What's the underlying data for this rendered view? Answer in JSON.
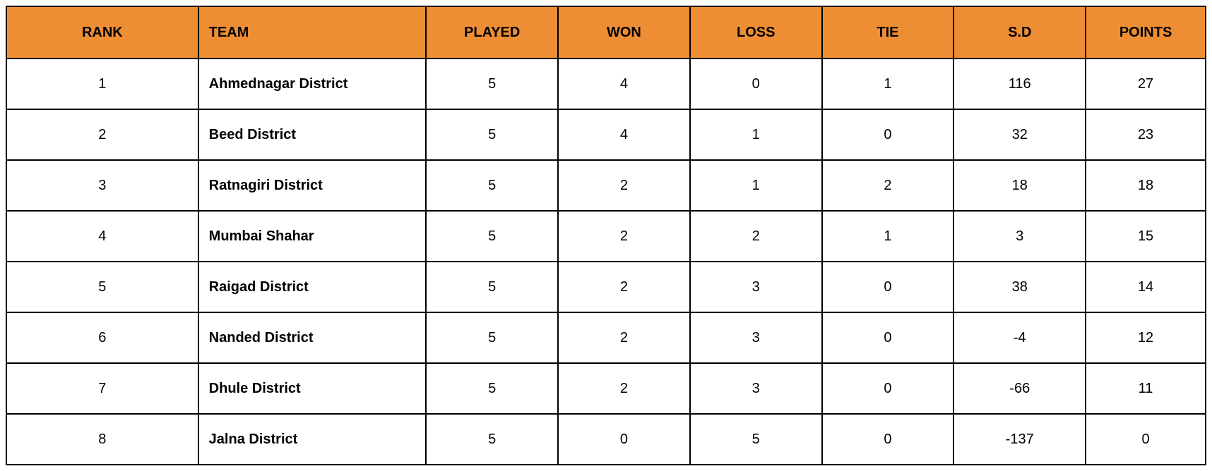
{
  "table": {
    "header_bg": "#ee8e34",
    "border_color": "#000000",
    "row_bg": "#ffffff",
    "font_family": "Arial",
    "header_fontsize": 20,
    "cell_fontsize": 20,
    "columns": {
      "rank": {
        "label": "RANK",
        "align": "center",
        "width_pct": 16
      },
      "team": {
        "label": "TEAM",
        "align": "left",
        "width_pct": 19
      },
      "played": {
        "label": "PLAYED",
        "align": "center",
        "width_pct": 11
      },
      "won": {
        "label": "WON",
        "align": "center",
        "width_pct": 11
      },
      "loss": {
        "label": "LOSS",
        "align": "center",
        "width_pct": 11
      },
      "tie": {
        "label": "TIE",
        "align": "center",
        "width_pct": 11
      },
      "sd": {
        "label": "S.D",
        "align": "center",
        "width_pct": 11
      },
      "points": {
        "label": "POINTS",
        "align": "center",
        "width_pct": 10
      }
    },
    "rows": [
      {
        "rank": "1",
        "team": "Ahmednagar District",
        "played": "5",
        "won": "4",
        "loss": "0",
        "tie": "1",
        "sd": "116",
        "points": "27"
      },
      {
        "rank": "2",
        "team": "Beed District",
        "played": "5",
        "won": "4",
        "loss": "1",
        "tie": "0",
        "sd": "32",
        "points": "23"
      },
      {
        "rank": "3",
        "team": "Ratnagiri District",
        "played": "5",
        "won": "2",
        "loss": "1",
        "tie": "2",
        "sd": "18",
        "points": "18"
      },
      {
        "rank": "4",
        "team": "Mumbai Shahar",
        "played": "5",
        "won": "2",
        "loss": "2",
        "tie": "1",
        "sd": "3",
        "points": "15"
      },
      {
        "rank": "5",
        "team": "Raigad District",
        "played": "5",
        "won": "2",
        "loss": "3",
        "tie": "0",
        "sd": "38",
        "points": "14"
      },
      {
        "rank": "6",
        "team": "Nanded District",
        "played": "5",
        "won": "2",
        "loss": "3",
        "tie": "0",
        "sd": "-4",
        "points": "12"
      },
      {
        "rank": "7",
        "team": "Dhule District",
        "played": "5",
        "won": "2",
        "loss": "3",
        "tie": "0",
        "sd": "-66",
        "points": "11"
      },
      {
        "rank": "8",
        "team": "Jalna District",
        "played": "5",
        "won": "0",
        "loss": "5",
        "tie": "0",
        "sd": "-137",
        "points": "0"
      }
    ]
  }
}
